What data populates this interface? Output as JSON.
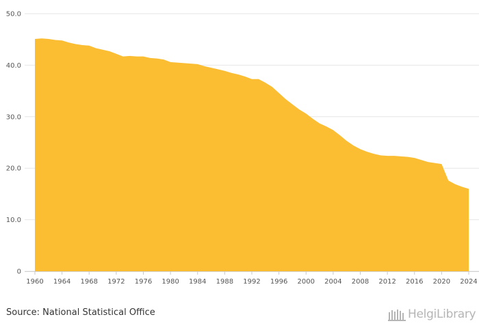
{
  "chart_data": {
    "type": "area",
    "x": [
      1960,
      1961,
      1962,
      1963,
      1964,
      1965,
      1966,
      1967,
      1968,
      1969,
      1970,
      1971,
      1972,
      1973,
      1974,
      1975,
      1976,
      1977,
      1978,
      1979,
      1980,
      1981,
      1982,
      1983,
      1984,
      1985,
      1986,
      1987,
      1988,
      1989,
      1990,
      1991,
      1992,
      1993,
      1994,
      1995,
      1996,
      1997,
      1998,
      1999,
      2000,
      2001,
      2002,
      2003,
      2004,
      2005,
      2006,
      2007,
      2008,
      2009,
      2010,
      2011,
      2012,
      2013,
      2014,
      2015,
      2016,
      2017,
      2018,
      2019,
      2020,
      2021,
      2022,
      2023,
      2024
    ],
    "values": [
      45.1,
      45.2,
      45.1,
      44.9,
      44.8,
      44.4,
      44.1,
      43.9,
      43.8,
      43.3,
      43.0,
      42.7,
      42.2,
      41.7,
      41.8,
      41.7,
      41.7,
      41.4,
      41.3,
      41.1,
      40.6,
      40.5,
      40.4,
      40.3,
      40.2,
      39.8,
      39.5,
      39.2,
      38.9,
      38.5,
      38.2,
      37.8,
      37.3,
      37.3,
      36.6,
      35.8,
      34.6,
      33.4,
      32.4,
      31.4,
      30.6,
      29.6,
      28.7,
      28.1,
      27.4,
      26.4,
      25.3,
      24.4,
      23.7,
      23.2,
      22.8,
      22.5,
      22.4,
      22.4,
      22.3,
      22.2,
      22.0,
      21.6,
      21.2,
      21.0,
      20.8,
      17.6,
      16.9,
      16.4,
      16.0
    ],
    "ylim": [
      0,
      50
    ],
    "yticks": [
      "0",
      "10.0",
      "20.0",
      "30.0",
      "40.0",
      "50.0"
    ],
    "ytick_values": [
      0,
      10,
      20,
      30,
      40,
      50
    ],
    "xticks": [
      "1960",
      "1964",
      "1968",
      "1972",
      "1976",
      "1980",
      "1984",
      "1988",
      "1992",
      "1996",
      "2000",
      "2004",
      "2008",
      "2012",
      "2016",
      "2020",
      "2024"
    ],
    "xtick_values": [
      1960,
      1964,
      1968,
      1972,
      1976,
      1980,
      1984,
      1988,
      1992,
      1996,
      2000,
      2004,
      2008,
      2012,
      2016,
      2020,
      2024
    ],
    "grid": true,
    "color": "#FBBD31",
    "title": "",
    "xlabel": "",
    "ylabel": ""
  },
  "footer": {
    "source": "Source: National Statistical Office",
    "logo_text": "HelgiLibrary"
  }
}
